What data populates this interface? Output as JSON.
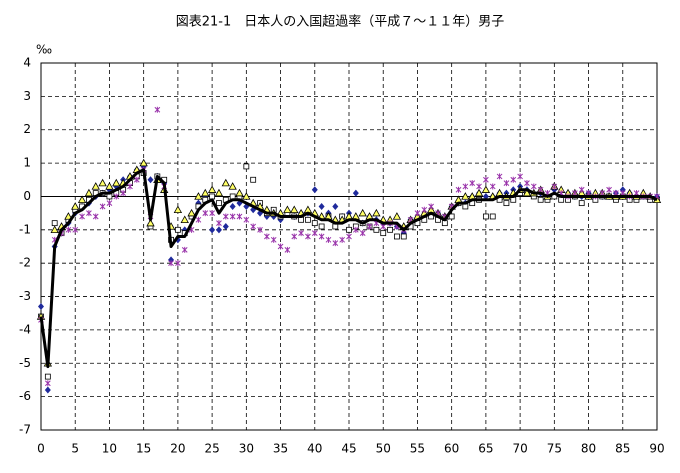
{
  "chart_data": {
    "type": "scatter",
    "title": "図表21-1　日本人の入国超過率（平成７～１１年）男子",
    "y_label": "‰",
    "xlim": [
      0,
      90
    ],
    "ylim": [
      -7,
      4
    ],
    "xticks": [
      0,
      5,
      10,
      15,
      20,
      25,
      30,
      35,
      40,
      45,
      50,
      55,
      60,
      65,
      70,
      75,
      80,
      85,
      90
    ],
    "yticks": [
      -7,
      -6,
      -5,
      -4,
      -3,
      -2,
      -1,
      0,
      1,
      2,
      3,
      4
    ],
    "grid": true,
    "x": [
      0,
      1,
      2,
      3,
      4,
      5,
      6,
      7,
      8,
      9,
      10,
      11,
      12,
      13,
      14,
      15,
      16,
      17,
      18,
      19,
      20,
      21,
      22,
      23,
      24,
      25,
      26,
      27,
      28,
      29,
      30,
      31,
      32,
      33,
      34,
      35,
      36,
      37,
      38,
      39,
      40,
      41,
      42,
      43,
      44,
      45,
      46,
      47,
      48,
      49,
      50,
      51,
      52,
      53,
      54,
      55,
      56,
      57,
      58,
      59,
      60,
      61,
      62,
      63,
      64,
      65,
      66,
      67,
      68,
      69,
      70,
      71,
      72,
      73,
      74,
      75,
      76,
      77,
      78,
      79,
      80,
      81,
      82,
      83,
      84,
      85,
      86,
      87,
      88,
      89,
      90
    ],
    "series": [
      {
        "marker": "diamond",
        "color": "#1f2a9c",
        "values": [
          -3.3,
          -5.8,
          -1.5,
          -1.1,
          -0.8,
          -0.5,
          -0.3,
          -0.2,
          0.0,
          0.1,
          0.2,
          0.3,
          0.5,
          0.6,
          0.8,
          0.9,
          0.5,
          0.6,
          0.4,
          -1.9,
          -1.3,
          -1.0,
          -0.6,
          -0.2,
          0.0,
          -1.0,
          -1.0,
          -0.9,
          -0.3,
          -0.2,
          -0.3,
          -0.4,
          -0.5,
          -0.6,
          -0.6,
          -0.7,
          -0.5,
          -0.6,
          -0.5,
          -0.5,
          0.2,
          -0.3,
          -0.5,
          -0.3,
          -0.6,
          -0.5,
          0.1,
          -0.8,
          -0.6,
          -0.7,
          -0.8,
          -0.8,
          -0.9,
          -1.1,
          -0.7,
          -0.7,
          -0.6,
          -0.5,
          -0.5,
          -0.6,
          -0.3,
          -0.2,
          -0.2,
          0.0,
          0.1,
          0.0,
          0.0,
          0.1,
          0.1,
          0.2,
          0.3,
          0.2,
          0.1,
          0.1,
          0.0,
          0.2,
          0.0,
          0.1,
          0.0,
          0.0,
          0.1,
          0.0,
          0.0,
          0.0,
          0.1,
          0.2,
          0.1,
          0.0,
          0.0,
          -0.1,
          0.0
        ]
      },
      {
        "marker": "square",
        "color": "#ffffff",
        "values": [
          -3.6,
          -5.4,
          -0.8,
          -1.1,
          -0.7,
          -0.4,
          -0.3,
          -0.1,
          0.1,
          0.1,
          0.0,
          0.1,
          0.2,
          0.4,
          0.6,
          0.7,
          -0.9,
          0.6,
          0.5,
          -1.3,
          -1.0,
          -1.1,
          -0.6,
          -0.3,
          -0.1,
          0.0,
          -0.2,
          -0.1,
          0.0,
          0.0,
          0.9,
          0.5,
          -0.2,
          -0.5,
          -0.4,
          -0.6,
          -0.5,
          -0.6,
          -0.7,
          -0.7,
          -0.8,
          -0.9,
          -0.6,
          -0.9,
          -0.6,
          -1.0,
          -0.9,
          -0.8,
          -0.9,
          -1.0,
          -1.1,
          -1.0,
          -1.2,
          -1.2,
          -0.9,
          -0.8,
          -0.7,
          -0.6,
          -0.7,
          -0.8,
          -0.6,
          -0.2,
          -0.3,
          -0.2,
          -0.1,
          -0.6,
          -0.6,
          -0.1,
          -0.2,
          -0.1,
          0.1,
          0.1,
          0.0,
          -0.1,
          -0.1,
          0.0,
          -0.1,
          -0.1,
          0.0,
          -0.2,
          0.0,
          -0.1,
          0.0,
          0.0,
          -0.1,
          0.0,
          -0.1,
          -0.1,
          0.0,
          -0.1,
          -0.1
        ]
      },
      {
        "marker": "triangle",
        "color": "#ffff66",
        "values": [
          -3.6,
          -5.0,
          -1.0,
          -0.9,
          -0.6,
          -0.3,
          -0.1,
          0.1,
          0.3,
          0.4,
          0.3,
          0.4,
          0.4,
          0.6,
          0.8,
          1.0,
          -0.8,
          0.5,
          0.2,
          -0.9,
          -0.4,
          -0.7,
          -0.5,
          0.0,
          0.1,
          0.2,
          0.1,
          0.4,
          0.3,
          0.1,
          0.0,
          -0.2,
          -0.3,
          -0.4,
          -0.5,
          -0.5,
          -0.4,
          -0.4,
          -0.5,
          -0.4,
          -0.5,
          -0.6,
          -0.6,
          -0.7,
          -0.7,
          -0.6,
          -0.6,
          -0.5,
          -0.6,
          -0.5,
          -0.7,
          -0.7,
          -0.6,
          -0.9,
          -0.7,
          -0.6,
          -0.5,
          -0.4,
          -0.5,
          -0.6,
          -0.3,
          -0.1,
          0.0,
          0.0,
          0.1,
          0.2,
          0.0,
          0.1,
          0.0,
          0.1,
          0.2,
          0.1,
          0.1,
          0.2,
          0.0,
          0.3,
          0.2,
          0.1,
          0.1,
          0.1,
          0.0,
          0.1,
          0.1,
          0.0,
          0.0,
          0.0,
          0.1,
          0.0,
          0.1,
          0.0,
          -0.1
        ]
      },
      {
        "marker": "asterisk",
        "color": "#9933aa",
        "values": [
          -3.7,
          -5.6,
          -1.3,
          -1.1,
          -1.0,
          -1.0,
          -0.6,
          -0.5,
          -0.6,
          -0.3,
          -0.2,
          0.0,
          0.1,
          0.3,
          0.5,
          0.8,
          -0.6,
          2.6,
          0.3,
          -2.0,
          -2.0,
          -1.6,
          -1.0,
          -0.7,
          -0.5,
          -0.5,
          -0.8,
          -0.6,
          -0.6,
          -0.6,
          -0.7,
          -0.9,
          -1.0,
          -1.2,
          -1.3,
          -1.5,
          -1.6,
          -1.2,
          -1.1,
          -1.2,
          -1.1,
          -1.2,
          -1.3,
          -1.4,
          -1.3,
          -1.2,
          -1.0,
          -1.1,
          -0.9,
          -0.8,
          -0.9,
          -0.8,
          -0.9,
          -1.0,
          -0.7,
          -0.5,
          -0.4,
          -0.3,
          -0.5,
          -0.6,
          -0.3,
          0.2,
          0.3,
          0.4,
          0.3,
          0.5,
          0.3,
          0.6,
          0.4,
          0.5,
          0.6,
          0.4,
          0.3,
          0.2,
          0.1,
          0.3,
          0.1,
          0.0,
          0.1,
          0.2,
          0.1,
          0.0,
          0.1,
          0.2,
          0.1,
          0.1,
          0.0,
          0.1,
          0.0,
          0.0,
          0.0
        ]
      },
      {
        "marker": "line",
        "color": "#000000",
        "values": [
          -3.6,
          -5.1,
          -1.5,
          -1.0,
          -0.8,
          -0.5,
          -0.4,
          -0.2,
          0.0,
          0.1,
          0.1,
          0.2,
          0.3,
          0.5,
          0.7,
          0.8,
          -0.7,
          0.6,
          0.4,
          -1.5,
          -1.2,
          -1.2,
          -0.8,
          -0.4,
          -0.2,
          -0.1,
          -0.5,
          -0.2,
          -0.1,
          -0.1,
          -0.2,
          -0.3,
          -0.4,
          -0.5,
          -0.5,
          -0.6,
          -0.6,
          -0.6,
          -0.6,
          -0.5,
          -0.6,
          -0.7,
          -0.7,
          -0.8,
          -0.8,
          -0.7,
          -0.7,
          -0.8,
          -0.7,
          -0.7,
          -0.8,
          -0.8,
          -0.8,
          -1.0,
          -0.8,
          -0.7,
          -0.6,
          -0.5,
          -0.6,
          -0.7,
          -0.4,
          -0.2,
          -0.2,
          -0.1,
          -0.1,
          -0.1,
          -0.1,
          0.0,
          0.0,
          0.0,
          0.2,
          0.2,
          0.1,
          0.1,
          0.0,
          0.1,
          0.0,
          0.0,
          0.0,
          0.0,
          0.0,
          0.0,
          0.0,
          0.0,
          0.0,
          0.0,
          0.0,
          0.0,
          0.0,
          0.0,
          -0.1
        ]
      }
    ]
  }
}
